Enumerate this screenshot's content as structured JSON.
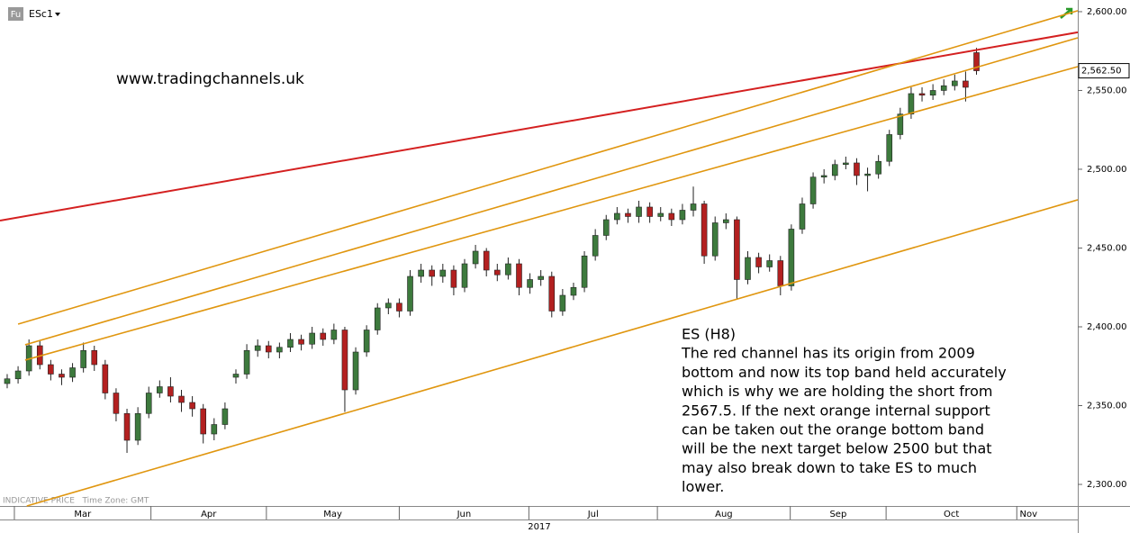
{
  "chart_data": {
    "type": "candlestick",
    "symbol_badge": "Fu",
    "symbol": "ESc1",
    "watermark": "www.tradingchannels.uk",
    "footer_note": "INDICATIVE PRICE   Time Zone: GMT",
    "year_label": "2017",
    "annotation_lines": [
      "ES (H8)",
      "The red channel has its origin from 2009",
      "bottom and now its top band held accurately",
      "which is why we are holding the short from",
      "2567.5. If the next orange internal support",
      "can be taken out the orange bottom band",
      "will be the next target below 2500 but that",
      "may also break down to take ES to much",
      "lower."
    ],
    "up_color": "#3d7a3d",
    "down_color": "#b32020",
    "open": [
      2364,
      2367,
      2372,
      2388,
      2376,
      2370,
      2368,
      2374,
      2385,
      2376,
      2358,
      2345,
      2328,
      2345,
      2358,
      2362,
      2356,
      2352,
      2348,
      2332,
      2338,
      2368,
      2370,
      2385,
      2388,
      2384,
      2387,
      2392,
      2389,
      2396,
      2392,
      2398,
      2360,
      2384,
      2398,
      2412,
      2415,
      2410,
      2432,
      2436,
      2432,
      2436,
      2425,
      2440,
      2448,
      2436,
      2433,
      2440,
      2425,
      2430,
      2432,
      2410,
      2420,
      2425,
      2445,
      2458,
      2468,
      2472,
      2470,
      2476,
      2470,
      2472,
      2468,
      2474,
      2478,
      2445,
      2466,
      2468,
      2430,
      2444,
      2438,
      2442,
      2426,
      2462,
      2478,
      2495,
      2496,
      2503,
      2504,
      2496,
      2497,
      2505,
      2522,
      2535,
      2548,
      2547,
      2550,
      2553,
      2556,
      2574
    ],
    "high": [
      2370,
      2375,
      2392,
      2391,
      2379,
      2373,
      2377,
      2390,
      2388,
      2379,
      2361,
      2348,
      2349,
      2362,
      2366,
      2368,
      2360,
      2356,
      2351,
      2342,
      2352,
      2373,
      2389,
      2392,
      2391,
      2390,
      2396,
      2395,
      2400,
      2399,
      2402,
      2400,
      2387,
      2401,
      2415,
      2418,
      2418,
      2436,
      2440,
      2439,
      2440,
      2439,
      2443,
      2452,
      2450,
      2440,
      2444,
      2443,
      2434,
      2436,
      2435,
      2424,
      2428,
      2448,
      2462,
      2471,
      2476,
      2475,
      2480,
      2479,
      2476,
      2475,
      2478,
      2489,
      2480,
      2470,
      2472,
      2470,
      2448,
      2447,
      2446,
      2445,
      2465,
      2482,
      2498,
      2500,
      2506,
      2508,
      2507,
      2501,
      2509,
      2525,
      2539,
      2552,
      2552,
      2554,
      2557,
      2560,
      2562,
      2577
    ],
    "low": [
      2361,
      2364,
      2369,
      2373,
      2366,
      2363,
      2365,
      2371,
      2372,
      2354,
      2340,
      2320,
      2325,
      2342,
      2355,
      2352,
      2346,
      2343,
      2326,
      2328,
      2335,
      2364,
      2367,
      2381,
      2380,
      2380,
      2384,
      2385,
      2386,
      2388,
      2389,
      2346,
      2357,
      2381,
      2395,
      2408,
      2406,
      2407,
      2428,
      2426,
      2428,
      2420,
      2422,
      2437,
      2432,
      2429,
      2430,
      2420,
      2421,
      2426,
      2406,
      2407,
      2417,
      2422,
      2442,
      2455,
      2465,
      2466,
      2466,
      2466,
      2467,
      2464,
      2465,
      2470,
      2440,
      2442,
      2462,
      2418,
      2427,
      2434,
      2435,
      2420,
      2423,
      2459,
      2475,
      2491,
      2493,
      2500,
      2490,
      2486,
      2494,
      2502,
      2519,
      2532,
      2543,
      2544,
      2547,
      2550,
      2543,
      2560
    ],
    "close": [
      2367,
      2372,
      2388,
      2376,
      2370,
      2368,
      2374,
      2385,
      2376,
      2358,
      2345,
      2328,
      2345,
      2358,
      2362,
      2356,
      2352,
      2348,
      2332,
      2338,
      2348,
      2370,
      2385,
      2388,
      2384,
      2387,
      2392,
      2389,
      2396,
      2392,
      2398,
      2360,
      2384,
      2398,
      2412,
      2415,
      2410,
      2432,
      2436,
      2432,
      2436,
      2425,
      2440,
      2448,
      2436,
      2433,
      2440,
      2425,
      2430,
      2432,
      2410,
      2420,
      2425,
      2445,
      2458,
      2468,
      2472,
      2470,
      2476,
      2470,
      2472,
      2468,
      2474,
      2478,
      2445,
      2466,
      2468,
      2430,
      2444,
      2438,
      2442,
      2426,
      2462,
      2478,
      2495,
      2496,
      2503,
      2504,
      2496,
      2497,
      2505,
      2522,
      2535,
      2548,
      2547,
      2550,
      2553,
      2556,
      2552,
      2562.5
    ],
    "last_price": {
      "value": 2562.5,
      "label": "2,562.50"
    },
    "trendlines": [
      {
        "color": "#d42020",
        "points": [
          [
            -0.66,
            2467.4
          ],
          [
            98.3,
            2586.9
          ]
        ]
      },
      {
        "color": "#e0960f",
        "points": [
          [
            1,
            2401.7
          ],
          [
            98.3,
            2600.6
          ]
        ]
      },
      {
        "color": "#e0960f",
        "points": [
          [
            1.65,
            2388.6
          ],
          [
            98.3,
            2583.4
          ]
        ]
      },
      {
        "color": "#e0960f",
        "points": [
          [
            1.65,
            2378.9
          ],
          [
            98.3,
            2565.1
          ]
        ]
      },
      {
        "color": "#e0960f",
        "points": [
          [
            1.8,
            2286.3
          ],
          [
            98.3,
            2480.6
          ]
        ]
      }
    ],
    "xlim": [
      -0.66,
      98.3
    ],
    "xticks": [
      {
        "value": 0.66,
        "label": "Mar"
      },
      {
        "value": 13.2,
        "label": "Apr"
      },
      {
        "value": 23.8,
        "label": "May"
      },
      {
        "value": 36,
        "label": "Jun"
      },
      {
        "value": 47.9,
        "label": "Jul"
      },
      {
        "value": 59.7,
        "label": "Aug"
      },
      {
        "value": 71.9,
        "label": "Sep"
      },
      {
        "value": 80.7,
        "label": "Oct"
      },
      {
        "value": 92.7,
        "label": "Nov"
      }
    ],
    "ylim": [
      2286.3,
      2607.4
    ],
    "yticks": [
      {
        "value": 2300,
        "label": "2,300.00"
      },
      {
        "value": 2350,
        "label": "2,350.00"
      },
      {
        "value": 2400,
        "label": "2,400.00"
      },
      {
        "value": 2450,
        "label": "2,450.00"
      },
      {
        "value": 2500,
        "label": "2,500.00"
      },
      {
        "value": 2550,
        "label": "2,550.00"
      },
      {
        "value": 2600,
        "label": "2,600.00"
      }
    ]
  }
}
